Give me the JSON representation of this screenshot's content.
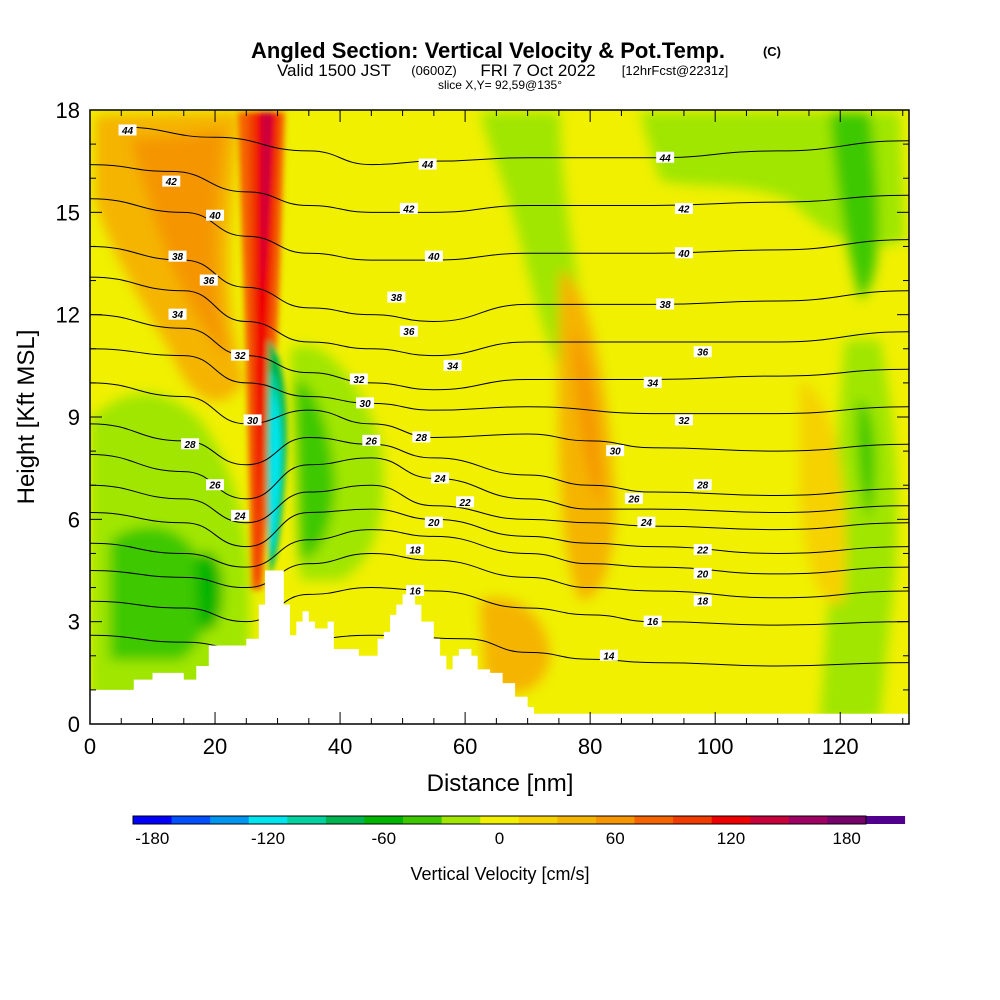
{
  "header": {
    "title": "Angled Section: Vertical Velocity & Pot.Temp.",
    "title_mark": "(C)",
    "valid_prefix": "Valid 1500 JST",
    "valid_utc": "(0600Z)",
    "valid_date": "FRI 7 Oct 2022",
    "forecast": "[12hrFcst@2231z]",
    "slice": "slice X,Y= 92,59@135°"
  },
  "chart_data": {
    "type": "heatmap",
    "xlabel": "Distance [nm]",
    "ylabel": "Height [Kft MSL]",
    "xlim": [
      0,
      131
    ],
    "ylim": [
      0,
      18
    ],
    "x_ticks": [
      0,
      20,
      40,
      60,
      80,
      100,
      120
    ],
    "y_ticks": [
      0,
      3,
      6,
      9,
      12,
      15,
      18
    ],
    "colorbar": {
      "title": "Vertical Velocity [cm/s]",
      "range": [
        -190,
        190
      ],
      "step": 20,
      "tick_labels": [
        "-180",
        "-120",
        "-60",
        "0",
        "60",
        "120",
        "180"
      ],
      "tick_values": [
        -180,
        -120,
        -60,
        0,
        60,
        120,
        180
      ],
      "colors": [
        "#0000ff",
        "#0050ff",
        "#0096f0",
        "#00e6f0",
        "#00d2a0",
        "#00b450",
        "#00b400",
        "#3cc800",
        "#a0e600",
        "#f0f000",
        "#f5d200",
        "#f5b400",
        "#f59600",
        "#f56400",
        "#f03c00",
        "#f00000",
        "#c8003c",
        "#a00064",
        "#78006e",
        "#50008c"
      ]
    },
    "terrain_kft": [
      [
        0,
        1.0
      ],
      [
        5,
        1.0
      ],
      [
        7,
        1.3
      ],
      [
        10,
        1.5
      ],
      [
        14,
        1.5
      ],
      [
        15,
        1.3
      ],
      [
        17,
        1.7
      ],
      [
        19,
        2.3
      ],
      [
        22,
        2.3
      ],
      [
        25,
        2.5
      ],
      [
        27,
        3.5
      ],
      [
        28,
        4.5
      ],
      [
        30,
        4.5
      ],
      [
        31,
        3.5
      ],
      [
        32,
        2.6
      ],
      [
        33,
        3.0
      ],
      [
        34,
        3.3
      ],
      [
        35,
        3.0
      ],
      [
        36,
        2.8
      ],
      [
        38,
        3.0
      ],
      [
        39,
        2.2
      ],
      [
        43,
        2.0
      ],
      [
        45,
        2.0
      ],
      [
        46,
        2.5
      ],
      [
        47,
        2.7
      ],
      [
        48,
        3.2
      ],
      [
        49,
        3.5
      ],
      [
        50,
        3.8
      ],
      [
        52,
        3.5
      ],
      [
        53,
        3.0
      ],
      [
        55,
        2.5
      ],
      [
        56,
        2.0
      ],
      [
        57,
        1.6
      ],
      [
        58,
        2.0
      ],
      [
        59,
        2.2
      ],
      [
        61,
        2.0
      ],
      [
        62,
        1.6
      ],
      [
        64,
        1.5
      ],
      [
        66,
        1.2
      ],
      [
        68,
        0.8
      ],
      [
        70,
        0.5
      ],
      [
        71,
        0.3
      ],
      [
        131,
        0.3
      ]
    ],
    "theta_contours": [
      {
        "label": "44",
        "pts": [
          [
            5,
            17.5
          ],
          [
            20,
            17.2
          ],
          [
            35,
            16.8
          ],
          [
            45,
            16.4
          ],
          [
            55,
            16.5
          ],
          [
            70,
            16.6
          ],
          [
            90,
            16.6
          ],
          [
            110,
            16.8
          ],
          [
            131,
            17.1
          ]
        ],
        "labels": [
          [
            6,
            17.4
          ],
          [
            54,
            16.4
          ],
          [
            92,
            16.6
          ]
        ]
      },
      {
        "label": "42",
        "pts": [
          [
            0,
            16.4
          ],
          [
            13,
            16.2
          ],
          [
            25,
            15.6
          ],
          [
            35,
            15.2
          ],
          [
            45,
            15.0
          ],
          [
            55,
            15.0
          ],
          [
            70,
            15.2
          ],
          [
            90,
            15.2
          ],
          [
            110,
            15.3
          ],
          [
            131,
            15.5
          ]
        ],
        "labels": [
          [
            13,
            15.9
          ],
          [
            51,
            15.1
          ],
          [
            95,
            15.1
          ]
        ]
      },
      {
        "label": "40",
        "pts": [
          [
            0,
            15.4
          ],
          [
            15,
            15.0
          ],
          [
            25,
            14.3
          ],
          [
            35,
            13.8
          ],
          [
            45,
            13.6
          ],
          [
            55,
            13.6
          ],
          [
            70,
            13.8
          ],
          [
            90,
            13.8
          ],
          [
            110,
            13.9
          ],
          [
            131,
            14.2
          ]
        ],
        "labels": [
          [
            20,
            14.9
          ],
          [
            55,
            13.7
          ],
          [
            95,
            13.8
          ]
        ]
      },
      {
        "label": "38",
        "pts": [
          [
            0,
            14.0
          ],
          [
            15,
            13.6
          ],
          [
            25,
            12.8
          ],
          [
            35,
            12.2
          ],
          [
            45,
            12.0
          ],
          [
            55,
            11.8
          ],
          [
            70,
            12.3
          ],
          [
            90,
            12.3
          ],
          [
            110,
            12.4
          ],
          [
            131,
            12.7
          ]
        ],
        "labels": [
          [
            14,
            13.7
          ],
          [
            49,
            12.5
          ],
          [
            92,
            12.3
          ]
        ]
      },
      {
        "label": "36",
        "pts": [
          [
            0,
            13.1
          ],
          [
            15,
            12.7
          ],
          [
            25,
            11.8
          ],
          [
            35,
            11.2
          ],
          [
            45,
            11.0
          ],
          [
            55,
            10.8
          ],
          [
            70,
            11.2
          ],
          [
            90,
            11.2
          ],
          [
            110,
            11.2
          ],
          [
            131,
            11.5
          ]
        ],
        "labels": [
          [
            19,
            13.0
          ],
          [
            51,
            11.5
          ],
          [
            98,
            10.9
          ]
        ]
      },
      {
        "label": "34",
        "pts": [
          [
            0,
            12.0
          ],
          [
            15,
            11.6
          ],
          [
            25,
            10.8
          ],
          [
            35,
            10.3
          ],
          [
            45,
            10.0
          ],
          [
            55,
            9.8
          ],
          [
            70,
            10.1
          ],
          [
            90,
            10.1
          ],
          [
            110,
            10.2
          ],
          [
            131,
            10.4
          ]
        ],
        "labels": [
          [
            14,
            12.0
          ],
          [
            58,
            10.5
          ],
          [
            90,
            10.0
          ]
        ]
      },
      {
        "label": "32",
        "pts": [
          [
            0,
            11.0
          ],
          [
            15,
            10.8
          ],
          [
            25,
            10.0
          ],
          [
            35,
            9.6
          ],
          [
            45,
            9.4
          ],
          [
            55,
            9.2
          ],
          [
            70,
            9.3
          ],
          [
            90,
            9.1
          ],
          [
            110,
            9.1
          ],
          [
            131,
            9.3
          ]
        ],
        "labels": [
          [
            24,
            10.8
          ],
          [
            43,
            10.1
          ],
          [
            95,
            8.9
          ]
        ]
      },
      {
        "label": "30",
        "pts": [
          [
            0,
            10.0
          ],
          [
            15,
            9.6
          ],
          [
            25,
            8.8
          ],
          [
            35,
            9.2
          ],
          [
            45,
            8.8
          ],
          [
            55,
            8.4
          ],
          [
            70,
            8.5
          ],
          [
            80,
            8.3
          ],
          [
            90,
            8.1
          ],
          [
            110,
            8.0
          ],
          [
            131,
            8.2
          ]
        ],
        "labels": [
          [
            26,
            8.9
          ],
          [
            44,
            9.4
          ],
          [
            84,
            8.0
          ]
        ]
      },
      {
        "label": "28",
        "pts": [
          [
            0,
            8.8
          ],
          [
            15,
            8.3
          ],
          [
            25,
            7.6
          ],
          [
            35,
            8.4
          ],
          [
            45,
            8.2
          ],
          [
            55,
            7.8
          ],
          [
            70,
            7.3
          ],
          [
            80,
            7.0
          ],
          [
            90,
            6.8
          ],
          [
            110,
            6.7
          ],
          [
            131,
            6.9
          ]
        ],
        "labels": [
          [
            16,
            8.2
          ],
          [
            53,
            8.4
          ],
          [
            98,
            7.0
          ]
        ]
      },
      {
        "label": "26",
        "pts": [
          [
            0,
            7.9
          ],
          [
            15,
            7.4
          ],
          [
            25,
            6.6
          ],
          [
            35,
            7.6
          ],
          [
            45,
            7.8
          ],
          [
            55,
            7.2
          ],
          [
            70,
            6.6
          ],
          [
            80,
            6.3
          ],
          [
            90,
            6.3
          ],
          [
            110,
            6.2
          ],
          [
            131,
            6.4
          ]
        ],
        "labels": [
          [
            20,
            7.0
          ],
          [
            45,
            8.3
          ],
          [
            87,
            6.6
          ]
        ]
      },
      {
        "label": "24",
        "pts": [
          [
            0,
            7.0
          ],
          [
            15,
            6.6
          ],
          [
            25,
            5.9
          ],
          [
            35,
            6.8
          ],
          [
            45,
            7.0
          ],
          [
            55,
            6.4
          ],
          [
            70,
            6.0
          ],
          [
            80,
            5.9
          ],
          [
            90,
            5.8
          ],
          [
            110,
            5.7
          ],
          [
            131,
            5.9
          ]
        ],
        "labels": [
          [
            24,
            6.1
          ],
          [
            56,
            7.2
          ],
          [
            89,
            5.9
          ]
        ]
      },
      {
        "label": "22",
        "pts": [
          [
            0,
            6.2
          ],
          [
            15,
            5.9
          ],
          [
            25,
            5.2
          ],
          [
            35,
            6.2
          ],
          [
            45,
            6.3
          ],
          [
            55,
            6.0
          ],
          [
            70,
            5.5
          ],
          [
            80,
            5.3
          ],
          [
            90,
            5.2
          ],
          [
            110,
            5.0
          ],
          [
            131,
            5.2
          ]
        ],
        "labels": [
          [
            60,
            6.5
          ],
          [
            98,
            5.1
          ]
        ]
      },
      {
        "label": "20",
        "pts": [
          [
            0,
            5.3
          ],
          [
            15,
            5.0
          ],
          [
            25,
            4.6
          ],
          [
            35,
            5.4
          ],
          [
            45,
            5.7
          ],
          [
            55,
            5.5
          ],
          [
            70,
            5.0
          ],
          [
            80,
            4.7
          ],
          [
            90,
            4.6
          ],
          [
            110,
            4.4
          ],
          [
            131,
            4.6
          ]
        ],
        "labels": [
          [
            55,
            5.9
          ],
          [
            98,
            4.4
          ]
        ]
      },
      {
        "label": "18",
        "pts": [
          [
            0,
            4.5
          ],
          [
            15,
            4.3
          ],
          [
            25,
            4.0
          ],
          [
            35,
            4.7
          ],
          [
            45,
            5.0
          ],
          [
            55,
            4.8
          ],
          [
            70,
            4.3
          ],
          [
            80,
            4.0
          ],
          [
            90,
            3.9
          ],
          [
            110,
            3.7
          ],
          [
            131,
            3.9
          ]
        ],
        "labels": [
          [
            52,
            5.1
          ],
          [
            98,
            3.6
          ]
        ]
      },
      {
        "label": "16",
        "pts": [
          [
            0,
            3.6
          ],
          [
            15,
            3.4
          ],
          [
            25,
            3.0
          ],
          [
            35,
            3.8
          ],
          [
            45,
            4.0
          ],
          [
            55,
            3.9
          ],
          [
            70,
            3.4
          ],
          [
            80,
            3.2
          ],
          [
            90,
            3.0
          ],
          [
            110,
            2.9
          ],
          [
            131,
            3.0
          ]
        ],
        "labels": [
          [
            52,
            3.9
          ],
          [
            90,
            3.0
          ]
        ]
      },
      {
        "label": "14",
        "pts": [
          [
            0,
            2.6
          ],
          [
            15,
            2.4
          ],
          [
            25,
            2.2
          ],
          [
            45,
            2.6
          ],
          [
            60,
            2.5
          ],
          [
            70,
            2.1
          ],
          [
            80,
            1.9
          ],
          [
            90,
            1.8
          ],
          [
            110,
            1.7
          ],
          [
            131,
            1.8
          ]
        ],
        "labels": [
          [
            83,
            2.0
          ]
        ]
      }
    ],
    "fill_regions": [
      {
        "name": "strong-updraft-core",
        "value": 150
      },
      {
        "name": "downdraft-core",
        "value": -130
      },
      {
        "name": "updraft-band-80nm",
        "value": 60
      },
      {
        "name": "weak-descent-upper-right",
        "value": -10
      }
    ]
  }
}
